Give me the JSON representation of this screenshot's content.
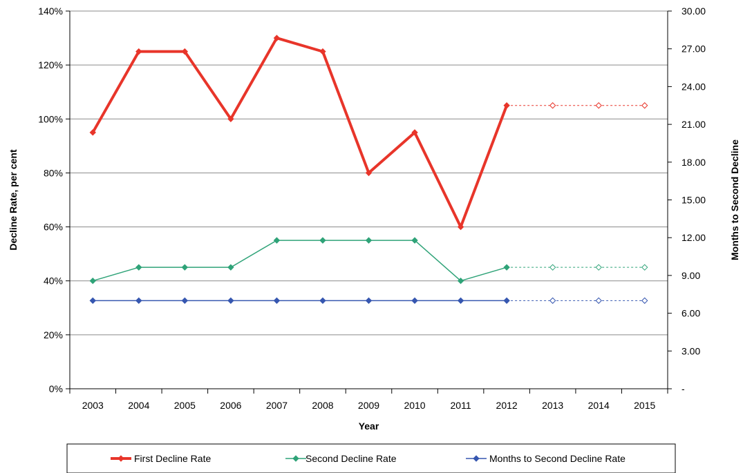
{
  "chart_data": {
    "type": "line",
    "title": "",
    "xlabel": "Year",
    "ylabel": "Decline Rate, per cent",
    "y2label": "Months to Second Decline",
    "categories": [
      "2003",
      "2004",
      "2005",
      "2006",
      "2007",
      "2008",
      "2009",
      "2010",
      "2011",
      "2012",
      "2013",
      "2014",
      "2015"
    ],
    "ylim": [
      0,
      140
    ],
    "y_ticks": [
      "0%",
      "20%",
      "40%",
      "60%",
      "80%",
      "100%",
      "120%",
      "140%"
    ],
    "y2lim": [
      0,
      30
    ],
    "y2_ticks": [
      "-",
      "3.00",
      "6.00",
      "9.00",
      "12.00",
      "15.00",
      "18.00",
      "21.00",
      "24.00",
      "27.00",
      "30.00"
    ],
    "grid": true,
    "legend_position": "bottom",
    "projection_start": "2012",
    "series": [
      {
        "name": "First Decline Rate",
        "axis": "left",
        "color": "#e8352a",
        "values": [
          95,
          125,
          125,
          100,
          130,
          125,
          80,
          95,
          60,
          105,
          105,
          105,
          105
        ]
      },
      {
        "name": "Second Decline Rate",
        "axis": "left",
        "color": "#2fa378",
        "values": [
          40,
          45,
          45,
          45,
          55,
          55,
          55,
          55,
          40,
          45,
          45,
          45,
          45
        ]
      },
      {
        "name": "Months to Second Decline Rate",
        "axis": "right",
        "color": "#3657b0",
        "values": [
          7,
          7,
          7,
          7,
          7,
          7,
          7,
          7,
          7,
          7,
          7,
          7,
          7
        ]
      }
    ]
  }
}
